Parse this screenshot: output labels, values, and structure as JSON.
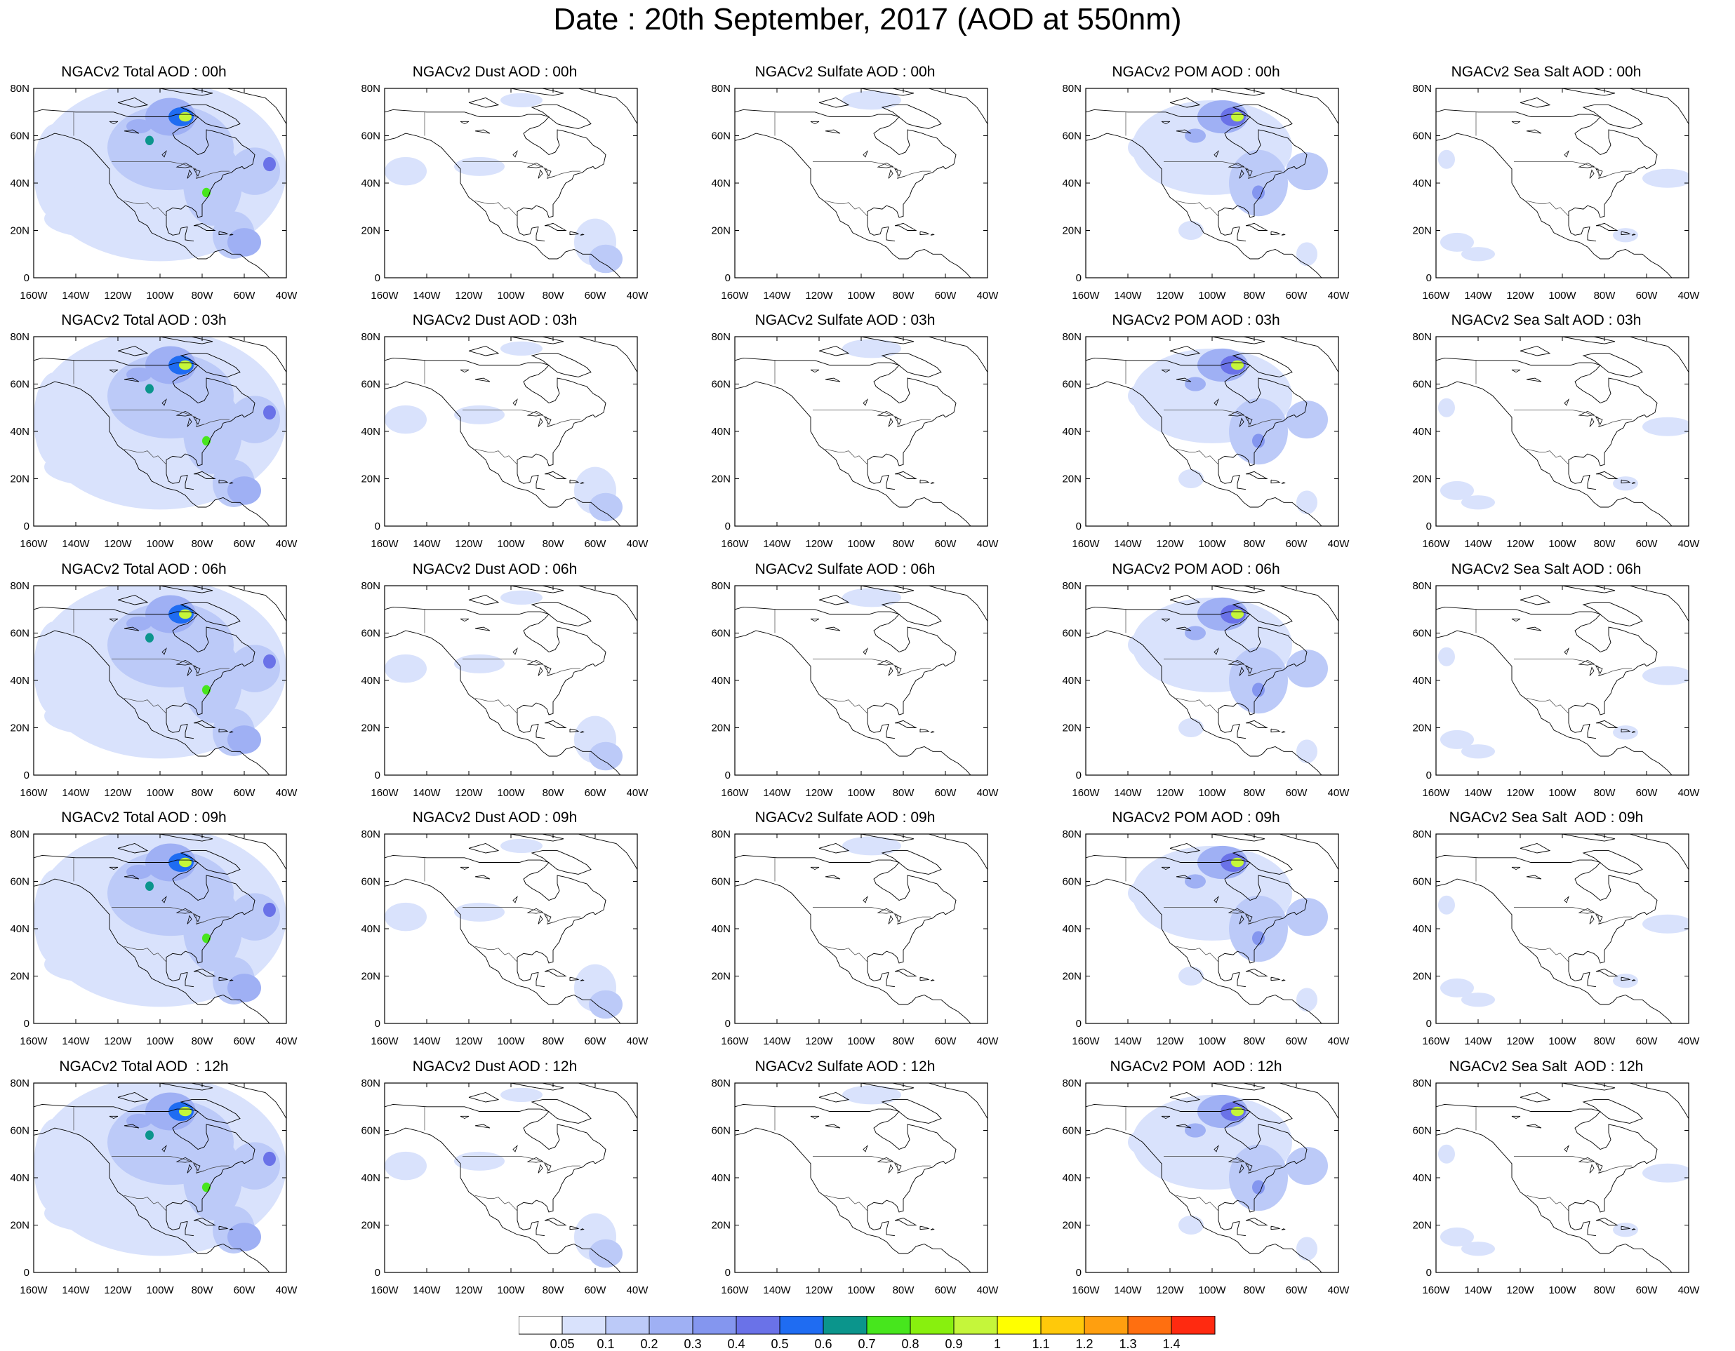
{
  "title": "Date : 20th September, 2017 (AOD at 550nm)",
  "x_ticks": [
    "160W",
    "140W",
    "120W",
    "100W",
    "80W",
    "60W",
    "40W"
  ],
  "y_ticks": [
    "0",
    "20N",
    "40N",
    "60N",
    "80N"
  ],
  "colorbar": {
    "levels": [
      "0.05",
      "0.1",
      "0.2",
      "0.3",
      "0.4",
      "0.5",
      "0.6",
      "0.7",
      "0.8",
      "0.9",
      "1",
      "1.1",
      "1.2",
      "1.3",
      "1.4"
    ],
    "colors": [
      "#ffffff",
      "#d9e2fc",
      "#bccaf8",
      "#9fb0f4",
      "#8496ef",
      "#6a72e8",
      "#1f6cf2",
      "#0b958c",
      "#47e61d",
      "#88f00e",
      "#c5f63a",
      "#ffff00",
      "#ffc90a",
      "#ff9f0f",
      "#ff6f10",
      "#ff2a10"
    ]
  },
  "panels": [
    {
      "title": "NGACv2 Total AOD : 00h",
      "species": "total"
    },
    {
      "title": "NGACv2 Dust AOD : 00h",
      "species": "dust"
    },
    {
      "title": "NGACv2 Sulfate AOD : 00h",
      "species": "sulfate"
    },
    {
      "title": "NGACv2 POM AOD : 00h",
      "species": "pom"
    },
    {
      "title": "NGACv2 Sea Salt AOD : 00h",
      "species": "seasalt"
    },
    {
      "title": "NGACv2 Total AOD : 03h",
      "species": "total"
    },
    {
      "title": "NGACv2 Dust AOD : 03h",
      "species": "dust"
    },
    {
      "title": "NGACv2 Sulfate AOD : 03h",
      "species": "sulfate"
    },
    {
      "title": "NGACv2 POM AOD : 03h",
      "species": "pom"
    },
    {
      "title": "NGACv2 Sea Salt AOD : 03h",
      "species": "seasalt"
    },
    {
      "title": "NGACv2 Total AOD : 06h",
      "species": "total"
    },
    {
      "title": "NGACv2 Dust AOD : 06h",
      "species": "dust"
    },
    {
      "title": "NGACv2 Sulfate AOD : 06h",
      "species": "sulfate"
    },
    {
      "title": "NGACv2 POM AOD : 06h",
      "species": "pom"
    },
    {
      "title": "NGACv2 Sea Salt AOD : 06h",
      "species": "seasalt"
    },
    {
      "title": "NGACv2 Total AOD : 09h",
      "species": "total"
    },
    {
      "title": "NGACv2 Dust AOD : 09h",
      "species": "dust"
    },
    {
      "title": "NGACv2 Sulfate AOD : 09h",
      "species": "sulfate"
    },
    {
      "title": "NGACv2 POM AOD : 09h",
      "species": "pom"
    },
    {
      "title": "NGACv2 Sea Salt  AOD : 09h",
      "species": "seasalt"
    },
    {
      "title": "NGACv2 Total AOD  : 12h",
      "species": "total"
    },
    {
      "title": "NGACv2 Dust AOD : 12h",
      "species": "dust"
    },
    {
      "title": "NGACv2 Sulfate AOD : 12h",
      "species": "sulfate"
    },
    {
      "title": "NGACv2 POM  AOD : 12h",
      "species": "pom"
    },
    {
      "title": "NGACv2 Sea Salt  AOD : 12h",
      "species": "seasalt"
    }
  ]
}
